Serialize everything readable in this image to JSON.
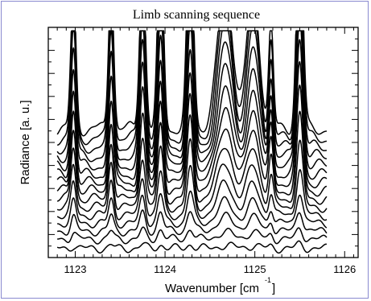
{
  "chart_data": {
    "type": "line",
    "title": "Limb scanning sequence",
    "xlabel": "Wavenumber [cm",
    "xlabel_superscript": "-1",
    "xlabel_suffix": "]",
    "ylabel": "Radiance [a. u.]",
    "xlim": [
      1122.7,
      1126.15
    ],
    "ylim": [
      0,
      1
    ],
    "x_ticks": [
      1123,
      1124,
      1125,
      1126
    ],
    "x_tick_labels": [
      "1123",
      "1124",
      "1125",
      "1126"
    ],
    "grid": false,
    "legend": "none",
    "line_color": "#000000",
    "x_range": [
      1122.8,
      1125.8
    ],
    "peaks": [
      {
        "x": 1122.98,
        "width": 0.028,
        "height": 0.6
      },
      {
        "x": 1123.4,
        "width": 0.028,
        "height": 0.67
      },
      {
        "x": 1123.75,
        "width": 0.032,
        "height": 0.75
      },
      {
        "x": 1123.95,
        "width": 0.032,
        "height": 0.84
      },
      {
        "x": 1124.28,
        "width": 0.035,
        "height": 0.92
      },
      {
        "x": 1124.67,
        "width": 0.085,
        "height": 0.62
      },
      {
        "x": 1124.98,
        "width": 0.07,
        "height": 0.6
      },
      {
        "x": 1125.18,
        "width": 0.025,
        "height": 0.45
      },
      {
        "x": 1125.5,
        "width": 0.035,
        "height": 0.95
      }
    ],
    "series": [
      {
        "values": {
          "offset": 0.04,
          "scale": 0.02
        }
      },
      {
        "values": {
          "offset": 0.08,
          "scale": 0.05
        }
      },
      {
        "values": {
          "offset": 0.115,
          "scale": 0.1
        }
      },
      {
        "values": {
          "offset": 0.15,
          "scale": 0.15
        }
      },
      {
        "values": {
          "offset": 0.185,
          "scale": 0.22
        }
      },
      {
        "values": {
          "offset": 0.22,
          "scale": 0.3
        }
      },
      {
        "values": {
          "offset": 0.255,
          "scale": 0.38
        }
      },
      {
        "values": {
          "offset": 0.29,
          "scale": 0.46
        }
      },
      {
        "values": {
          "offset": 0.325,
          "scale": 0.54
        }
      },
      {
        "values": {
          "offset": 0.36,
          "scale": 0.62
        }
      },
      {
        "values": {
          "offset": 0.4,
          "scale": 0.7
        }
      },
      {
        "values": {
          "offset": 0.44,
          "scale": 0.78
        }
      },
      {
        "values": {
          "offset": 0.48,
          "scale": 0.86
        }
      },
      {
        "values": {
          "offset": 0.52,
          "scale": 0.93
        }
      },
      {
        "values": {
          "offset": 0.56,
          "scale": 1.0
        }
      }
    ]
  }
}
